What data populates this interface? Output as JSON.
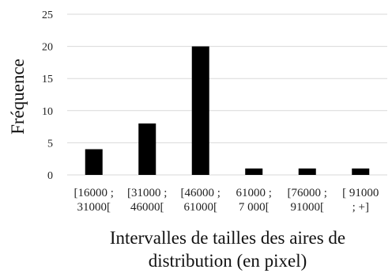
{
  "chart_data": {
    "type": "bar",
    "categories": [
      [
        "[16000 ;",
        "31000["
      ],
      [
        "[31000 ;",
        "46000["
      ],
      [
        "[46000 ;",
        "61000["
      ],
      [
        "61000 ;",
        "7 000["
      ],
      [
        "[76000 ;",
        "91000["
      ],
      [
        "[ 91000",
        "; +]"
      ]
    ],
    "values": [
      4,
      8,
      20,
      1,
      1,
      1
    ],
    "ylabel": "Fréquence",
    "xlabel": [
      "Intervalles de tailles des aires de",
      "distribution (en pixel)"
    ],
    "ylim": [
      0,
      25
    ],
    "yticks": [
      0,
      5,
      10,
      15,
      20,
      25
    ],
    "grid": true,
    "bar_color": "#000000"
  }
}
